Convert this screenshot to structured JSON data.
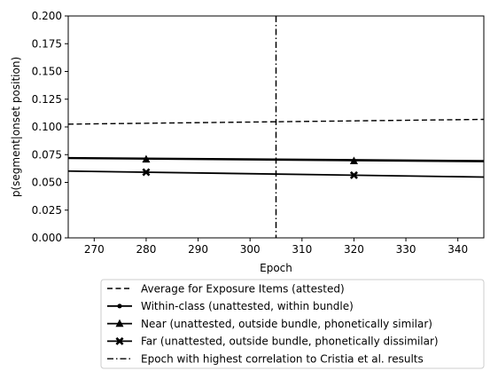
{
  "chart_data": {
    "type": "line",
    "title": "",
    "xlabel": "Epoch",
    "ylabel": "p(segment|onset position)",
    "xlim": [
      265,
      345
    ],
    "ylim": [
      0.0,
      0.2
    ],
    "xticks": [
      270,
      280,
      290,
      300,
      310,
      320,
      330,
      340
    ],
    "yticks": [
      "0.000",
      "0.025",
      "0.050",
      "0.075",
      "0.100",
      "0.125",
      "0.150",
      "0.175",
      "0.200"
    ],
    "grid": false,
    "legend_position": "below",
    "series": [
      {
        "name": "Average for Exposure Items (attested)",
        "style": "dashed",
        "marker": "none",
        "color": "#000000",
        "x": [
          265,
          345
        ],
        "y": [
          0.1025,
          0.1068
        ]
      },
      {
        "name": "Within-class (unattested, within bundle)",
        "style": "solid",
        "marker": "dot",
        "color": "#000000",
        "x": [
          265,
          345
        ],
        "y": [
          0.0722,
          0.0695
        ]
      },
      {
        "name": "Near (unattested, outside bundle, phonetically similar)",
        "style": "solid",
        "marker": "triangle",
        "color": "#000000",
        "x": [
          265,
          345
        ],
        "y": [
          0.0717,
          0.0688
        ],
        "marker_points": [
          [
            280,
            0.0708
          ],
          [
            320,
            0.0693
          ]
        ]
      },
      {
        "name": "Far (unattested, outside bundle, phonetically dissimilar)",
        "style": "solid",
        "marker": "x",
        "color": "#000000",
        "x": [
          265,
          345
        ],
        "y": [
          0.0602,
          0.0548
        ],
        "marker_points": [
          [
            280,
            0.0592
          ],
          [
            320,
            0.0565
          ]
        ]
      }
    ],
    "vline": {
      "name": "Epoch with highest correlation to Cristia et al. results",
      "x": 305,
      "style": "dashdot",
      "color": "#000000"
    }
  }
}
